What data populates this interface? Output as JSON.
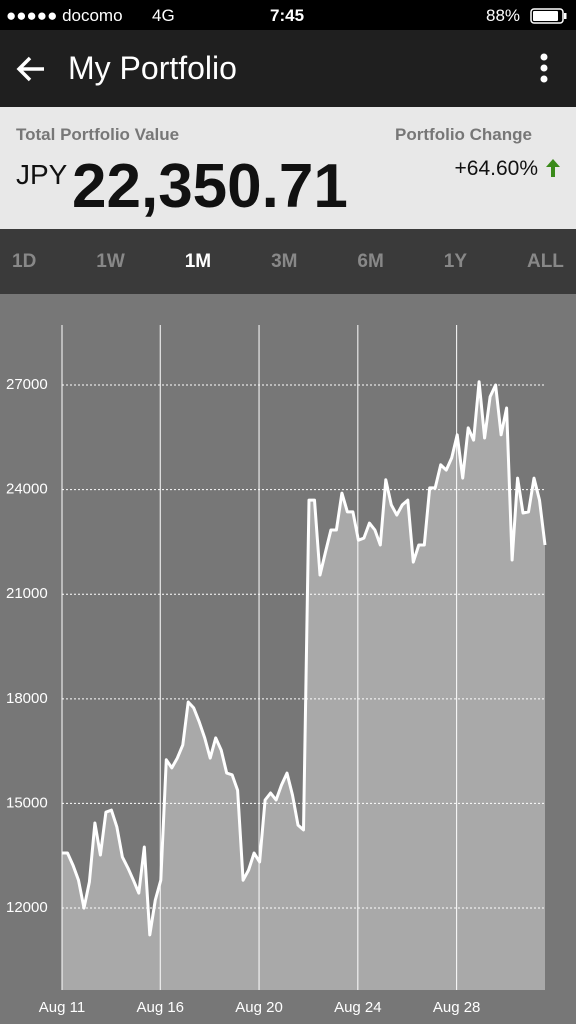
{
  "status_bar": {
    "carrier": "●●●●● docomo",
    "network": "4G",
    "time": "7:45",
    "battery": "88%"
  },
  "header": {
    "title": "My Portfolio"
  },
  "summary": {
    "value_label": "Total Portfolio Value",
    "change_label": "Portfolio Change",
    "currency": "JPY",
    "value": "22,350.71",
    "change": "+64.60%"
  },
  "tabs": {
    "items": [
      "1D",
      "1W",
      "1M",
      "3M",
      "6M",
      "1Y",
      "ALL"
    ],
    "selected": 2
  },
  "chart_data": {
    "type": "area",
    "color": "#ffffff",
    "fill": "#a9a9a9",
    "values": [
      13580,
      13580,
      13230,
      12800,
      12000,
      12750,
      14440,
      13520,
      14750,
      14810,
      14320,
      13460,
      13150,
      12800,
      12430,
      13750,
      11230,
      12230,
      12800,
      16250,
      16020,
      16300,
      16680,
      17910,
      17740,
      17340,
      16880,
      16300,
      16880,
      16530,
      15870,
      15820,
      15380,
      12800,
      13090,
      13580,
      13320,
      15100,
      15300,
      15100,
      15530,
      15870,
      15240,
      14380,
      14240,
      23700,
      23700,
      21550,
      22210,
      22840,
      22840,
      23900,
      23360,
      23360,
      22550,
      22610,
      23040,
      22840,
      22410,
      24280,
      23560,
      23270,
      23560,
      23700,
      21920,
      22410,
      22410,
      24050,
      24050,
      24710,
      24560,
      24910,
      25570,
      24330,
      25770,
      25420,
      27090,
      25480,
      26660,
      27000,
      25570,
      26340,
      21980,
      24330,
      23330,
      23360,
      24330,
      23700,
      22410
    ],
    "xlim": [
      0,
      88
    ],
    "xticks": [
      {
        "value": 0,
        "label": "Aug 11"
      },
      {
        "value": 17.9,
        "label": "Aug 16"
      },
      {
        "value": 35.9,
        "label": "Aug 20"
      },
      {
        "value": 53.9,
        "label": "Aug 24"
      },
      {
        "value": 71.9,
        "label": "Aug 28"
      }
    ],
    "ylim": [
      9650,
      28720
    ],
    "yticks": [
      12000,
      15000,
      18000,
      21000,
      24000,
      27000
    ],
    "grid": true
  }
}
